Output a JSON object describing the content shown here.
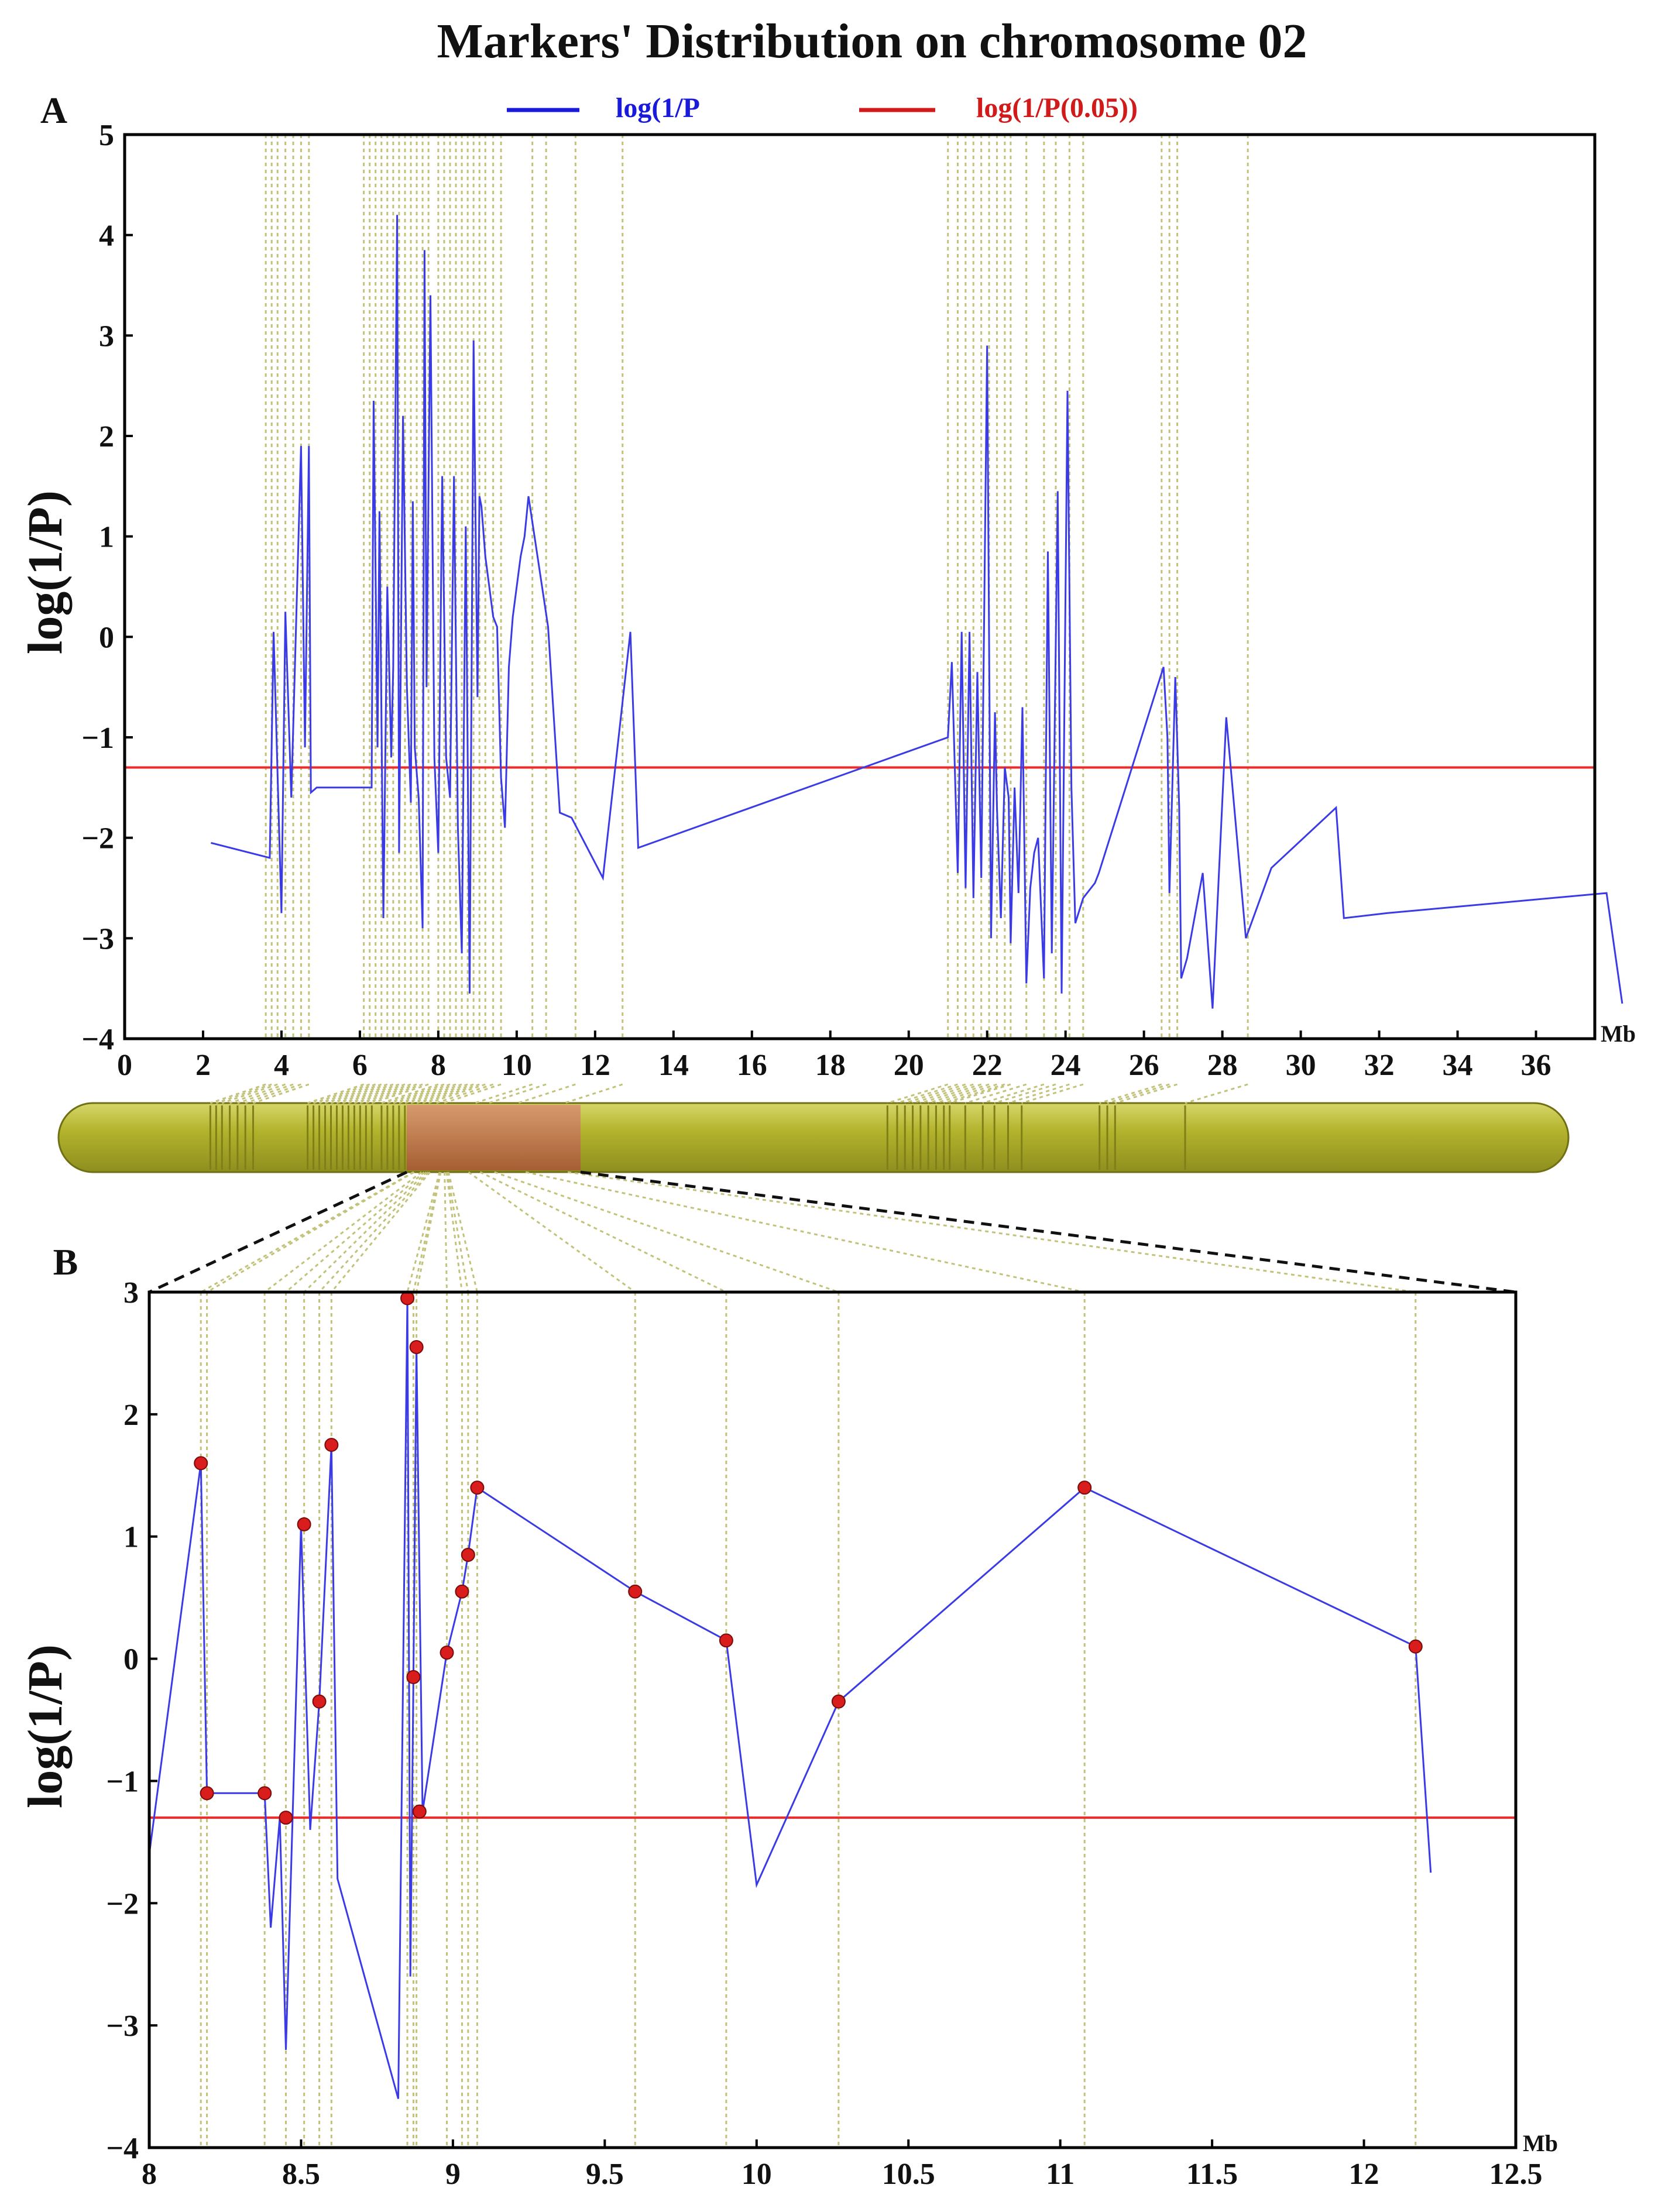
{
  "figure": {
    "title": "Markers'  Distribution on chromosome 02",
    "colors": {
      "curve": "#3b3be6",
      "threshold": "#ec2b2b",
      "marker_line": "#c2c27a",
      "point": "#d91c1c",
      "chromosome": "#b3b32d",
      "chromosome_band": "#7f7f18",
      "highlight": "#c0784a"
    },
    "icons": {
      "chromosome": "chromosome-bar-icon",
      "point": "red-dot-icon"
    }
  },
  "chart_data": [
    {
      "panel": "A",
      "type": "line",
      "title": "Markers'  Distribution on chromosome 02",
      "xlabel": "Mb",
      "ylabel": "log(1/P)",
      "xlim": [
        0,
        37.5
      ],
      "ylim": [
        -4,
        5
      ],
      "x_ticks": [
        "0",
        "2",
        "4",
        "6",
        "8",
        "10",
        "12",
        "14",
        "16",
        "18",
        "20",
        "22",
        "24",
        "26",
        "28",
        "30",
        "32",
        "34",
        "36"
      ],
      "y_ticks": [
        "5",
        "4",
        "3",
        "2",
        "1",
        "0",
        "−1",
        "−2",
        "−3",
        "−4"
      ],
      "legend": [
        "log(1/P",
        "log(1/P(0.05))"
      ],
      "threshold": -1.3,
      "marker_positions": [
        3.6,
        3.75,
        3.9,
        4.1,
        4.3,
        4.5,
        4.7,
        6.1,
        6.25,
        6.4,
        6.55,
        6.7,
        6.85,
        7.0,
        7.15,
        7.3,
        7.45,
        7.6,
        7.75,
        8.0,
        8.15,
        8.3,
        8.45,
        8.6,
        8.75,
        8.9,
        9.05,
        9.2,
        9.4,
        9.6,
        10.4,
        10.75,
        11.5,
        12.7,
        21.0,
        21.25,
        21.45,
        21.65,
        21.85,
        22.05,
        22.25,
        22.45,
        22.6,
        23.0,
        23.45,
        23.75,
        24.1,
        24.45,
        26.45,
        26.65,
        26.85,
        28.65
      ],
      "series": [
        {
          "name": "log(1/P",
          "x": [
            2.2,
            3.7,
            3.8,
            4.0,
            4.1,
            4.25,
            4.5,
            4.6,
            4.7,
            4.75,
            4.9,
            5.0,
            6.3,
            6.35,
            6.45,
            6.5,
            6.6,
            6.7,
            6.8,
            6.85,
            6.95,
            7.0,
            7.1,
            7.2,
            7.3,
            7.35,
            7.4,
            7.5,
            7.6,
            7.65,
            7.7,
            7.8,
            7.9,
            8.0,
            8.1,
            8.2,
            8.3,
            8.4,
            8.5,
            8.6,
            8.7,
            8.8,
            8.9,
            9.0,
            9.05,
            9.1,
            9.2,
            9.3,
            9.4,
            9.5,
            9.6,
            9.7,
            9.8,
            9.9,
            10.0,
            10.1,
            10.2,
            10.3,
            10.8,
            11.1,
            11.4,
            12.2,
            12.9,
            13.1,
            21.0,
            21.1,
            21.25,
            21.35,
            21.45,
            21.55,
            21.65,
            21.75,
            21.85,
            22.0,
            22.1,
            22.2,
            22.25,
            22.35,
            22.45,
            22.55,
            22.6,
            22.7,
            22.8,
            22.9,
            23.0,
            23.1,
            23.2,
            23.3,
            23.45,
            23.55,
            23.65,
            23.8,
            23.9,
            24.05,
            24.15,
            24.25,
            24.45,
            24.55,
            24.65,
            24.75,
            24.85,
            26.5,
            26.6,
            26.65,
            26.8,
            26.9,
            26.95,
            27.1,
            27.5,
            27.75,
            28.1,
            28.6,
            29.25,
            30.9,
            31.1,
            32.2,
            37.8,
            38.2
          ],
          "values": [
            -2.05,
            -2.2,
            0.05,
            -2.75,
            0.25,
            -1.6,
            1.9,
            -1.1,
            1.9,
            -1.55,
            -1.5,
            -1.5,
            -1.5,
            2.35,
            -1.1,
            1.25,
            -2.8,
            0.5,
            -1.2,
            -0.3,
            4.2,
            -2.15,
            2.2,
            -0.5,
            -1.65,
            1.35,
            -1.1,
            -1.6,
            -2.9,
            3.85,
            -0.5,
            3.4,
            -1.2,
            -2.15,
            1.6,
            -1.2,
            -1.6,
            1.6,
            -1.9,
            -3.15,
            1.1,
            -3.55,
            2.95,
            -0.6,
            1.4,
            1.3,
            0.8,
            0.5,
            0.2,
            0.1,
            -1.4,
            -1.9,
            -0.3,
            0.2,
            0.5,
            0.8,
            1.0,
            1.4,
            0.1,
            -1.75,
            -1.8,
            -2.4,
            0.05,
            -2.1,
            -1.0,
            -0.25,
            -2.35,
            0.05,
            -2.5,
            0.05,
            -2.6,
            -0.35,
            -2.4,
            2.9,
            -3.0,
            -0.75,
            -1.7,
            -2.8,
            -1.3,
            -1.6,
            -3.05,
            -1.5,
            -2.55,
            -0.7,
            -3.45,
            -2.5,
            -2.15,
            -2.0,
            -3.4,
            0.85,
            -3.15,
            1.45,
            -3.55,
            2.45,
            -1.5,
            -2.85,
            -2.6,
            -2.55,
            -2.5,
            -2.45,
            -2.35,
            -0.3,
            -1.0,
            -2.55,
            -0.4,
            -1.7,
            -3.4,
            -3.2,
            -2.35,
            -3.7,
            -0.8,
            -3.0,
            -2.3,
            -1.7,
            -2.8,
            -2.75,
            -2.55,
            -3.65
          ]
        }
      ]
    },
    {
      "panel": "B",
      "type": "line",
      "title": "",
      "xlabel": "Mb",
      "ylabel": "log(1/P)",
      "xlim": [
        8,
        12.5
      ],
      "ylim": [
        -4,
        3
      ],
      "x_ticks": [
        "8",
        "8.5",
        "9",
        "9.5",
        "10",
        "10.5",
        "11",
        "11.5",
        "12",
        "12.5"
      ],
      "y_ticks": [
        "3",
        "2",
        "1",
        "0",
        "−1",
        "−2",
        "−3",
        "−4"
      ],
      "threshold": -1.3,
      "marker_positions": [
        8.17,
        8.19,
        8.38,
        8.45,
        8.51,
        8.56,
        8.6,
        8.85,
        8.87,
        8.88,
        8.98,
        9.03,
        9.05,
        9.08,
        9.6,
        9.9,
        10.27,
        11.08,
        12.17
      ],
      "series": [
        {
          "name": "log(1/P",
          "x": [
            8.0,
            8.17,
            8.19,
            8.38,
            8.4,
            8.43,
            8.45,
            8.5,
            8.53,
            8.56,
            8.6,
            8.62,
            8.82,
            8.85,
            8.86,
            8.87,
            8.88,
            8.9,
            8.98,
            9.03,
            9.05,
            9.08,
            9.6,
            9.9,
            10.0,
            10.27,
            11.08,
            12.17,
            12.22
          ],
          "values": [
            -1.6,
            1.6,
            -1.1,
            -1.1,
            -2.2,
            -1.3,
            -3.2,
            1.1,
            -1.4,
            -0.35,
            1.75,
            -1.8,
            -3.6,
            2.95,
            -2.6,
            -0.15,
            2.55,
            -1.25,
            0.05,
            0.55,
            0.85,
            1.4,
            0.55,
            0.15,
            -1.85,
            -0.35,
            1.4,
            0.1,
            -1.75
          ]
        },
        {
          "name": "marked points",
          "x": [
            8.17,
            8.19,
            8.38,
            8.45,
            8.51,
            8.56,
            8.6,
            8.85,
            8.87,
            8.88,
            8.89,
            8.98,
            9.03,
            9.05,
            9.08,
            9.6,
            9.9,
            10.27,
            11.08,
            12.17
          ],
          "values": [
            1.6,
            -1.1,
            -1.1,
            -1.3,
            1.1,
            -0.35,
            1.75,
            2.95,
            -0.15,
            2.55,
            -1.25,
            0.05,
            0.55,
            0.85,
            1.4,
            0.55,
            0.15,
            -0.35,
            1.4,
            0.1
          ]
        }
      ]
    }
  ],
  "panels": {
    "A": {
      "letter": "A",
      "x_unit": "Mb"
    },
    "B": {
      "letter": "B",
      "x_unit": "Mb"
    }
  }
}
